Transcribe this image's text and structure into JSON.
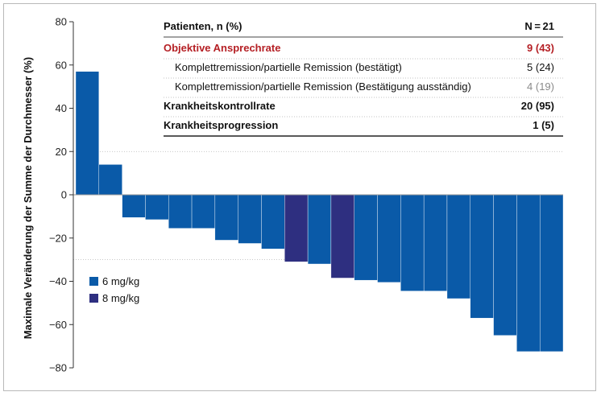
{
  "chart_data": {
    "type": "bar",
    "ylabel": "Maximale Veränderung der Summe der Durchmesser (%)",
    "xlabel": "",
    "ylim": [
      -80,
      80
    ],
    "yticks": [
      80,
      60,
      40,
      20,
      0,
      -20,
      -40,
      -60,
      -80
    ],
    "ytick_labels": [
      "80",
      "60",
      "40",
      "20",
      "0",
      "−20",
      "−40",
      "−60",
      "−80"
    ],
    "reference_lines": [
      20,
      -30
    ],
    "legend": [
      {
        "name": "6 mg/kg",
        "color": "#0a5aa8"
      },
      {
        "name": "8 mg/kg",
        "color": "#2e2f80"
      }
    ],
    "series": [
      {
        "name": "6 mg/kg",
        "color": "#0a5aa8"
      },
      {
        "name": "8 mg/kg",
        "color": "#2e2f80"
      }
    ],
    "bars": [
      {
        "value": 57,
        "group": "6 mg/kg"
      },
      {
        "value": 14,
        "group": "6 mg/kg"
      },
      {
        "value": -10.5,
        "group": "6 mg/kg"
      },
      {
        "value": -11.5,
        "group": "6 mg/kg"
      },
      {
        "value": -15.5,
        "group": "6 mg/kg"
      },
      {
        "value": -15.5,
        "group": "6 mg/kg"
      },
      {
        "value": -21,
        "group": "6 mg/kg"
      },
      {
        "value": -22.5,
        "group": "6 mg/kg"
      },
      {
        "value": -25,
        "group": "6 mg/kg"
      },
      {
        "value": -31,
        "group": "8 mg/kg"
      },
      {
        "value": -32,
        "group": "6 mg/kg"
      },
      {
        "value": -38.5,
        "group": "8 mg/kg"
      },
      {
        "value": -39.5,
        "group": "6 mg/kg"
      },
      {
        "value": -40.5,
        "group": "6 mg/kg"
      },
      {
        "value": -44.5,
        "group": "6 mg/kg"
      },
      {
        "value": -44.5,
        "group": "6 mg/kg"
      },
      {
        "value": -48,
        "group": "6 mg/kg"
      },
      {
        "value": -57,
        "group": "6 mg/kg"
      },
      {
        "value": -65,
        "group": "6 mg/kg"
      },
      {
        "value": -72.5,
        "group": "6 mg/kg"
      },
      {
        "value": -72.5,
        "group": "6 mg/kg"
      }
    ]
  },
  "table": {
    "header_label": "Patienten, n (%)",
    "header_value": "N = 21",
    "rows": [
      {
        "label": "Objektive Ansprechrate",
        "value": "9 (43)"
      },
      {
        "label": "Komplettremission/partielle Remission (bestätigt)",
        "value": "5 (24)"
      },
      {
        "label": "Komplettremission/partielle Remission (Bestätigung ausständig)",
        "value": "4 (19)"
      },
      {
        "label": "Krankheitskontrollrate",
        "value": "20 (95)"
      },
      {
        "label": "Krankheitsprogression",
        "value": "1 (5)"
      }
    ]
  },
  "colors": {
    "accent_red": "#b52025",
    "muted_grey": "#8a8a8a",
    "bar_6mg": "#0a5aa8",
    "bar_8mg": "#2e2f80"
  }
}
